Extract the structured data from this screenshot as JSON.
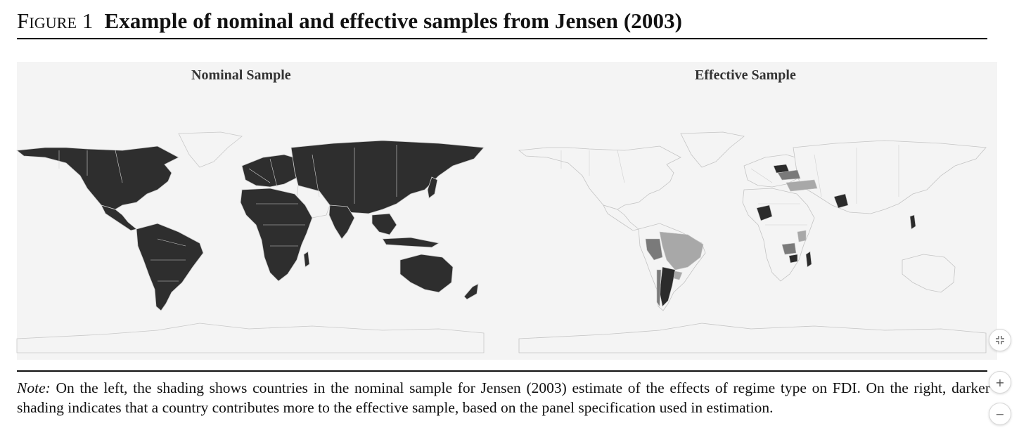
{
  "figure": {
    "label": "Figure 1",
    "title": "Example of nominal and effective samples from Jensen (2003)"
  },
  "panels": {
    "left_title": "Nominal Sample",
    "right_title": "Effective Sample"
  },
  "colors": {
    "nominal_included": "#2e2e2e",
    "not_included": "#f4f4f4",
    "border": "#bdbdbd",
    "effective_high": "#2b2b2b",
    "effective_mid": "#7a7a7a",
    "effective_low": "#a8a8a8"
  },
  "note": {
    "label": "Note:",
    "text": " On the left, the shading shows countries in the nominal sample for Jensen (2003) estimate of the effects of regime type on FDI. On the right, darker shading indicates that a country contributes more to the effective sample, based on the panel specification used in estimation."
  },
  "controls": {
    "fit_icon": "fit-screen-icon",
    "zoom_in_symbol": "+",
    "zoom_out_symbol": "−"
  }
}
